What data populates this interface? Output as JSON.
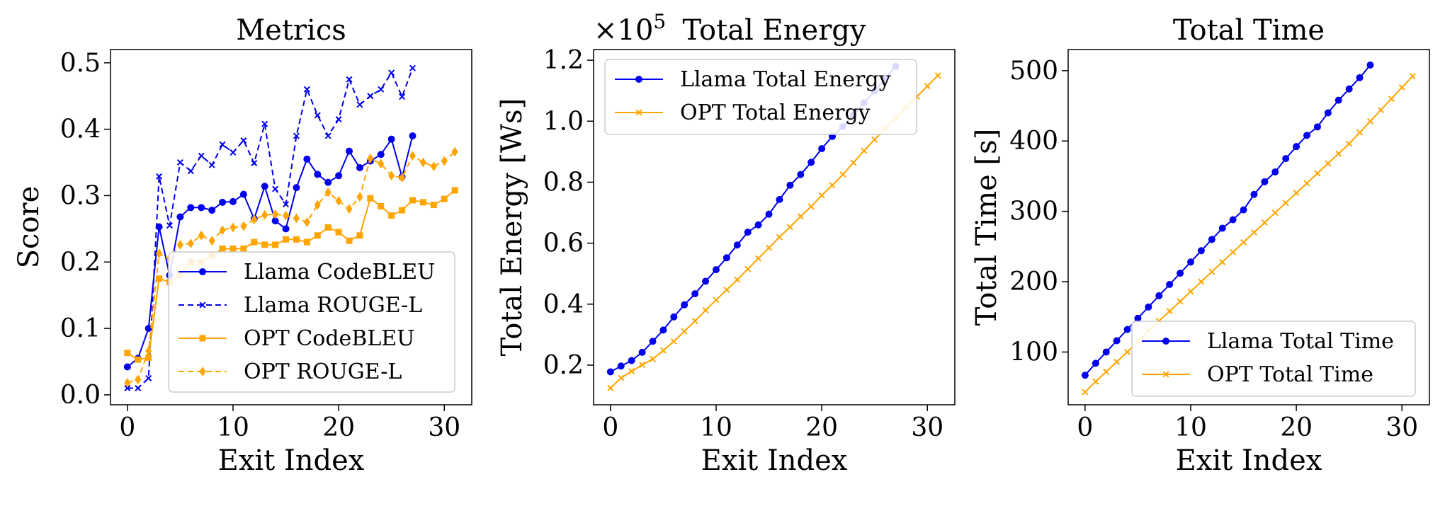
{
  "colors": {
    "llama": "#0000ee",
    "opt": "#ffa500"
  },
  "chart_data": [
    {
      "type": "line",
      "title": "Metrics",
      "xlabel": "Exit Index",
      "ylabel": "Score",
      "xlim": [
        -1.6,
        32.6
      ],
      "ylim": [
        -0.015,
        0.52
      ],
      "xticks": [
        0,
        10,
        20,
        30
      ],
      "yticks": [
        0.0,
        0.1,
        0.2,
        0.3,
        0.4,
        0.5
      ],
      "ytick_labels": [
        "0.0",
        "0.1",
        "0.2",
        "0.3",
        "0.4",
        "0.5"
      ],
      "legend_position": "lower-right",
      "series": [
        {
          "name": "Llama CodeBLEU",
          "color": "llama",
          "dash": false,
          "marker": "circle",
          "x": [
            0,
            1,
            2,
            3,
            4,
            5,
            6,
            7,
            8,
            9,
            10,
            11,
            12,
            13,
            14,
            15,
            16,
            17,
            18,
            19,
            20,
            21,
            22,
            23,
            24,
            25,
            26,
            27
          ],
          "values": [
            0.042,
            0.055,
            0.1,
            0.253,
            0.18,
            0.268,
            0.282,
            0.282,
            0.278,
            0.29,
            0.291,
            0.302,
            0.265,
            0.314,
            0.262,
            0.25,
            0.312,
            0.355,
            0.332,
            0.32,
            0.33,
            0.367,
            0.342,
            0.352,
            0.362,
            0.385,
            0.328,
            0.39
          ]
        },
        {
          "name": "Llama ROUGE-L",
          "color": "llama",
          "dash": true,
          "marker": "x",
          "x": [
            0,
            1,
            2,
            3,
            4,
            5,
            6,
            7,
            8,
            9,
            10,
            11,
            12,
            13,
            14,
            15,
            16,
            17,
            18,
            19,
            20,
            21,
            22,
            23,
            24,
            25,
            26,
            27
          ],
          "values": [
            0.01,
            0.01,
            0.025,
            0.329,
            0.255,
            0.35,
            0.337,
            0.36,
            0.346,
            0.377,
            0.365,
            0.383,
            0.349,
            0.408,
            0.31,
            0.287,
            0.39,
            0.46,
            0.421,
            0.39,
            0.415,
            0.475,
            0.437,
            0.45,
            0.46,
            0.485,
            0.449,
            0.492
          ]
        },
        {
          "name": "OPT CodeBLEU",
          "color": "opt",
          "dash": false,
          "marker": "square",
          "x": [
            0,
            1,
            2,
            3,
            4,
            5,
            6,
            7,
            8,
            9,
            10,
            11,
            12,
            13,
            14,
            15,
            16,
            17,
            18,
            19,
            20,
            21,
            22,
            23,
            24,
            25,
            26,
            27,
            28,
            29,
            30,
            31
          ],
          "values": [
            0.063,
            0.053,
            0.056,
            0.175,
            0.17,
            0.18,
            0.2,
            0.2,
            0.21,
            0.22,
            0.22,
            0.22,
            0.23,
            0.226,
            0.226,
            0.234,
            0.234,
            0.23,
            0.24,
            0.252,
            0.245,
            0.232,
            0.24,
            0.296,
            0.284,
            0.27,
            0.278,
            0.293,
            0.29,
            0.286,
            0.295,
            0.308
          ]
        },
        {
          "name": "OPT ROUGE-L",
          "color": "opt",
          "dash": true,
          "marker": "diamond",
          "x": [
            0,
            1,
            2,
            3,
            4,
            5,
            6,
            7,
            8,
            9,
            10,
            11,
            12,
            13,
            14,
            15,
            16,
            17,
            18,
            19,
            20,
            21,
            22,
            23,
            24,
            25,
            26,
            27,
            28,
            29,
            30,
            31
          ],
          "values": [
            0.018,
            0.023,
            0.066,
            0.213,
            0.205,
            0.226,
            0.228,
            0.24,
            0.232,
            0.248,
            0.252,
            0.254,
            0.264,
            0.271,
            0.272,
            0.27,
            0.266,
            0.26,
            0.286,
            0.305,
            0.292,
            0.28,
            0.298,
            0.356,
            0.348,
            0.33,
            0.327,
            0.36,
            0.35,
            0.344,
            0.352,
            0.366
          ]
        }
      ]
    },
    {
      "type": "line",
      "title": "Total Energy",
      "offset_label": "×10",
      "offset_exponent": "5",
      "xlabel": "Exit Index",
      "ylabel": "Total Energy [Ws]",
      "xlim": [
        -1.6,
        32.6
      ],
      "ylim": [
        0.07,
        1.235
      ],
      "xticks": [
        0,
        10,
        20,
        30
      ],
      "yticks": [
        0.2,
        0.4,
        0.6,
        0.8,
        1.0,
        1.2
      ],
      "ytick_labels": [
        "0.2",
        "0.4",
        "0.6",
        "0.8",
        "1.0",
        "1.2"
      ],
      "legend_position": "top-left",
      "series": [
        {
          "name": "Llama Total Energy",
          "color": "llama",
          "dash": false,
          "marker": "circle",
          "x": [
            0,
            1,
            2,
            3,
            4,
            5,
            6,
            7,
            8,
            9,
            10,
            11,
            12,
            13,
            14,
            15,
            16,
            17,
            18,
            19,
            20,
            21,
            22,
            23,
            24,
            25,
            26,
            27
          ],
          "values": [
            0.178,
            0.197,
            0.215,
            0.242,
            0.278,
            0.315,
            0.358,
            0.398,
            0.434,
            0.475,
            0.513,
            0.552,
            0.594,
            0.636,
            0.66,
            0.695,
            0.743,
            0.79,
            0.825,
            0.865,
            0.91,
            0.95,
            0.982,
            1.02,
            1.06,
            1.1,
            1.14,
            1.18
          ]
        },
        {
          "name": "OPT Total Energy",
          "color": "opt",
          "dash": false,
          "marker": "x",
          "x": [
            0,
            1,
            2,
            3,
            4,
            5,
            6,
            7,
            8,
            9,
            10,
            11,
            12,
            13,
            14,
            15,
            16,
            17,
            18,
            19,
            20,
            21,
            22,
            23,
            24,
            25,
            26,
            27,
            28,
            29,
            30,
            31
          ],
          "values": [
            0.125,
            0.158,
            0.18,
            0.201,
            0.22,
            0.248,
            0.278,
            0.311,
            0.345,
            0.38,
            0.414,
            0.447,
            0.48,
            0.515,
            0.55,
            0.585,
            0.62,
            0.653,
            0.688,
            0.72,
            0.757,
            0.79,
            0.825,
            0.864,
            0.903,
            0.94,
            0.975,
            1.01,
            1.045,
            1.08,
            1.115,
            1.15
          ]
        }
      ]
    },
    {
      "type": "line",
      "title": "Total Time",
      "xlabel": "Exit Index",
      "ylabel": "Total Time [s]",
      "xlim": [
        -1.6,
        32.6
      ],
      "ylim": [
        25,
        530
      ],
      "xticks": [
        0,
        10,
        20,
        30
      ],
      "yticks": [
        100,
        200,
        300,
        400,
        500
      ],
      "ytick_labels": [
        "100",
        "200",
        "300",
        "400",
        "500"
      ],
      "legend_position": "lower-right",
      "series": [
        {
          "name": "Llama Total Time",
          "color": "llama",
          "dash": false,
          "marker": "circle",
          "x": [
            0,
            1,
            2,
            3,
            4,
            5,
            6,
            7,
            8,
            9,
            10,
            11,
            12,
            13,
            14,
            15,
            16,
            17,
            18,
            19,
            20,
            21,
            22,
            23,
            24,
            25,
            26,
            27
          ],
          "values": [
            67,
            84,
            100,
            116,
            132,
            148,
            164,
            180,
            196,
            212,
            228,
            244,
            260,
            276,
            288,
            302,
            324,
            342,
            356,
            375,
            392,
            408,
            420,
            440,
            458,
            474,
            490,
            508
          ]
        },
        {
          "name": "OPT Total Time",
          "color": "opt",
          "dash": false,
          "marker": "x",
          "x": [
            0,
            1,
            2,
            3,
            4,
            5,
            6,
            7,
            8,
            9,
            10,
            11,
            12,
            13,
            14,
            15,
            16,
            17,
            18,
            19,
            20,
            21,
            22,
            23,
            24,
            25,
            26,
            27,
            28,
            29,
            30,
            31
          ],
          "values": [
            43,
            58,
            72,
            86,
            100,
            115,
            130,
            144,
            158,
            172,
            186,
            200,
            214,
            228,
            242,
            256,
            270,
            284,
            298,
            312,
            326,
            340,
            354,
            368,
            382,
            396,
            412,
            428,
            444,
            460,
            476,
            492
          ]
        }
      ]
    }
  ]
}
